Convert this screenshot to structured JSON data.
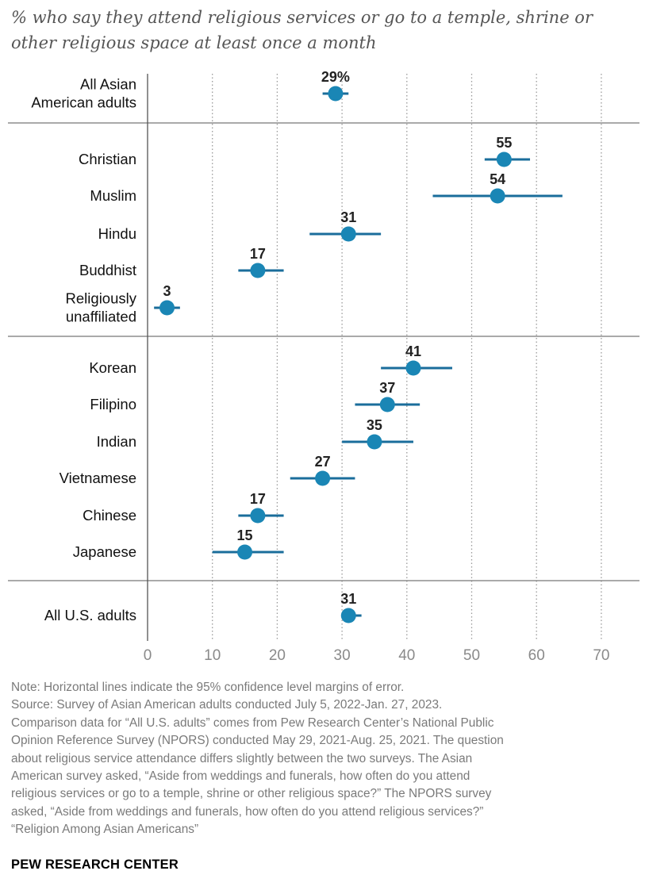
{
  "chart_data": {
    "type": "scatter",
    "subtitle": "% who say they attend religious services or go to a temple, shrine or other religious space at least once a month",
    "xlim": [
      0,
      70
    ],
    "x_ticks": [
      "0",
      "10",
      "20",
      "30",
      "40",
      "50",
      "60",
      "70"
    ],
    "grid": "vertical dotted",
    "groups": [
      {
        "rows": [
          {
            "label": [
              "All Asian",
              "American adults"
            ],
            "value": 29,
            "value_label": "29%",
            "ci": [
              27,
              31
            ]
          }
        ]
      },
      {
        "rows": [
          {
            "label": [
              "Christian"
            ],
            "value": 55,
            "value_label": "55",
            "ci": [
              52,
              59
            ]
          },
          {
            "label": [
              "Muslim"
            ],
            "value": 54,
            "value_label": "54",
            "ci": [
              44,
              64
            ]
          },
          {
            "label": [
              "Hindu"
            ],
            "value": 31,
            "value_label": "31",
            "ci": [
              25,
              36
            ]
          },
          {
            "label": [
              "Buddhist"
            ],
            "value": 17,
            "value_label": "17",
            "ci": [
              14,
              21
            ]
          },
          {
            "label": [
              "Religiously",
              "unaffiliated"
            ],
            "value": 3,
            "value_label": "3",
            "ci": [
              1,
              5
            ]
          }
        ]
      },
      {
        "rows": [
          {
            "label": [
              "Korean"
            ],
            "value": 41,
            "value_label": "41",
            "ci": [
              36,
              47
            ]
          },
          {
            "label": [
              "Filipino"
            ],
            "value": 37,
            "value_label": "37",
            "ci": [
              32,
              42
            ]
          },
          {
            "label": [
              "Indian"
            ],
            "value": 35,
            "value_label": "35",
            "ci": [
              30,
              41
            ]
          },
          {
            "label": [
              "Vietnamese"
            ],
            "value": 27,
            "value_label": "27",
            "ci": [
              22,
              32
            ]
          },
          {
            "label": [
              "Chinese"
            ],
            "value": 17,
            "value_label": "17",
            "ci": [
              14,
              21
            ]
          },
          {
            "label": [
              "Japanese"
            ],
            "value": 15,
            "value_label": "15",
            "ci": [
              10,
              21
            ]
          }
        ]
      },
      {
        "rows": [
          {
            "label": [
              "All U.S. adults"
            ],
            "value": 31,
            "value_label": "31",
            "ci": [
              30,
              33
            ]
          }
        ]
      }
    ],
    "colors": {
      "dot": "#1a86b5",
      "error_bar": "#1a6d9b",
      "axis": "#555555",
      "grid": "#9a9a9a",
      "tick_label": "#8a8a8a"
    }
  },
  "note_lines": [
    "Note: Horizontal lines indicate the 95% confidence level margins of error.",
    "Source: Survey of Asian American adults conducted July 5, 2022-Jan. 27, 2023.",
    "Comparison data for “All U.S. adults” comes from Pew Research Center’s National Public",
    "Opinion Reference Survey (NPORS) conducted May 29, 2021-Aug. 25, 2021. The question",
    "about religious service attendance differs slightly between the two surveys. The Asian",
    "American survey asked, “Aside from weddings and funerals, how often do you attend",
    "religious services or go to a temple, shrine or other religious space?” The NPORS survey",
    "asked, “Aside from weddings and funerals, how often do you attend religious services?”",
    "“Religion Among Asian Americans”"
  ],
  "brand": "PEW RESEARCH CENTER"
}
